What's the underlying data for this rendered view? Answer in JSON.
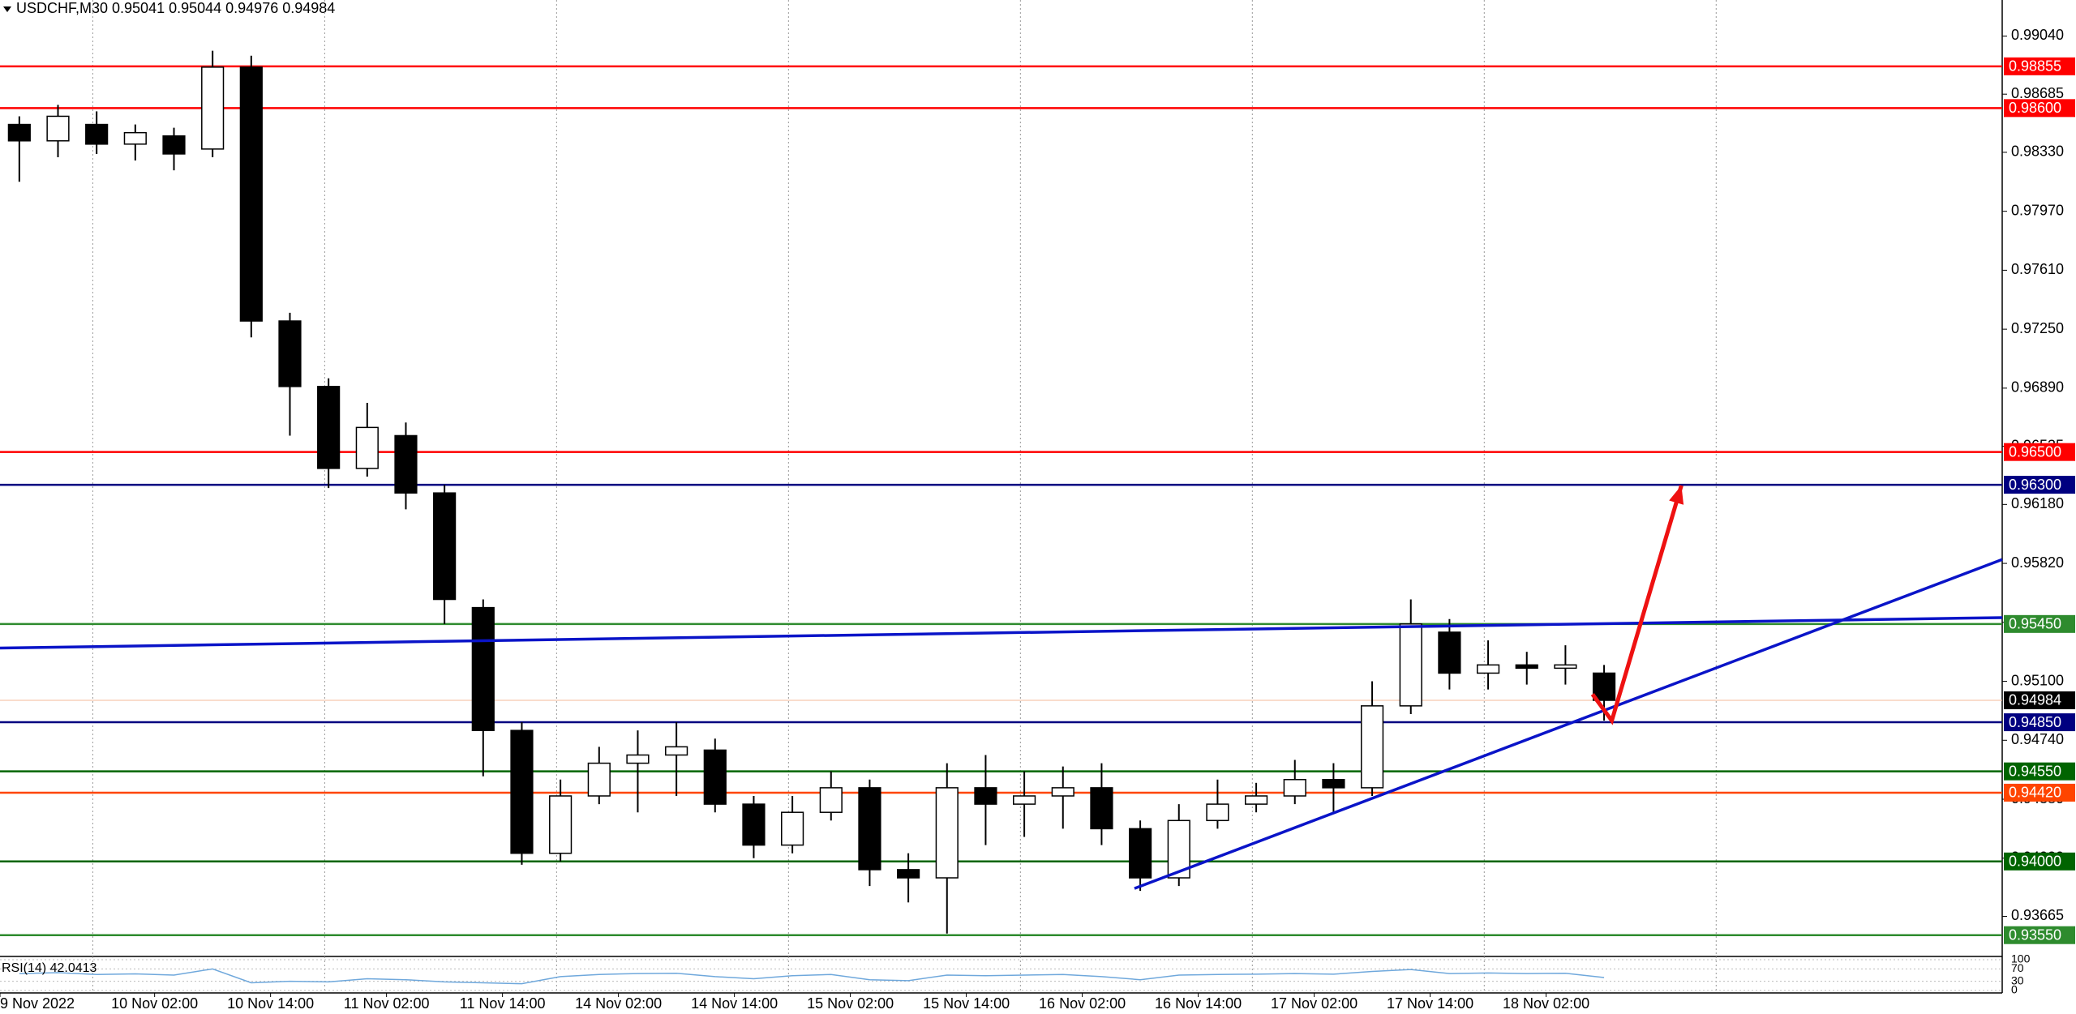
{
  "chart_data": {
    "type": "candlestick",
    "title": "USDCHF,M30  0.95041 0.95044 0.94976 0.94984",
    "open": [
      0.985,
      0.984,
      0.985,
      0.9838,
      0.9843,
      0.9835,
      0.9885,
      0.973,
      0.969,
      0.964,
      0.966,
      0.9625,
      0.9555,
      0.948,
      0.9405,
      0.944,
      0.946,
      0.9465,
      0.9468,
      0.9435,
      0.941,
      0.943,
      0.9445,
      0.9395,
      0.939,
      0.9445,
      0.9435,
      0.944,
      0.9445,
      0.942,
      0.939,
      0.9425,
      0.9435,
      0.944,
      0.945,
      0.9445,
      0.9495,
      0.954,
      0.9515,
      0.952,
      0.9518,
      0.9515
    ],
    "high": [
      0.9855,
      0.9862,
      0.9858,
      0.985,
      0.9848,
      0.9895,
      0.9892,
      0.9735,
      0.9695,
      0.968,
      0.9668,
      0.963,
      0.956,
      0.9485,
      0.945,
      0.947,
      0.948,
      0.9485,
      0.9475,
      0.944,
      0.944,
      0.9455,
      0.945,
      0.9405,
      0.946,
      0.9465,
      0.9455,
      0.9458,
      0.946,
      0.9425,
      0.9435,
      0.945,
      0.9448,
      0.9462,
      0.946,
      0.951,
      0.956,
      0.9548,
      0.9535,
      0.9528,
      0.9532,
      0.952
    ],
    "low": [
      0.9815,
      0.983,
      0.9832,
      0.9828,
      0.9822,
      0.983,
      0.972,
      0.966,
      0.9628,
      0.9635,
      0.9615,
      0.9545,
      0.9452,
      0.9398,
      0.94,
      0.9435,
      0.943,
      0.944,
      0.943,
      0.9402,
      0.9405,
      0.9425,
      0.9385,
      0.9375,
      0.9356,
      0.941,
      0.9415,
      0.942,
      0.941,
      0.9382,
      0.9385,
      0.942,
      0.943,
      0.9435,
      0.943,
      0.944,
      0.949,
      0.9505,
      0.9505,
      0.9508,
      0.9508,
      0.9486
    ],
    "close": [
      0.984,
      0.9855,
      0.9838,
      0.9845,
      0.9832,
      0.9885,
      0.973,
      0.969,
      0.964,
      0.9665,
      0.9625,
      0.956,
      0.948,
      0.9405,
      0.944,
      0.946,
      0.9465,
      0.947,
      0.9435,
      0.941,
      0.943,
      0.9445,
      0.9395,
      0.939,
      0.9445,
      0.9435,
      0.944,
      0.9445,
      0.942,
      0.939,
      0.9425,
      0.9435,
      0.944,
      0.945,
      0.9445,
      0.9495,
      0.9545,
      0.9515,
      0.952,
      0.9518,
      0.952,
      0.94984
    ],
    "xlim": [
      -0.5,
      51.3
    ],
    "xticks": [
      {
        "value": -0.5,
        "label": "9 Nov 2022"
      },
      {
        "value": 3.5,
        "label": "10 Nov 02:00"
      },
      {
        "value": 6.5,
        "label": "10 Nov 14:00"
      },
      {
        "value": 9.5,
        "label": "11 Nov 02:00"
      },
      {
        "value": 12.5,
        "label": "11 Nov 14:00"
      },
      {
        "value": 15.5,
        "label": "14 Nov 02:00"
      },
      {
        "value": 18.5,
        "label": "14 Nov 14:00"
      },
      {
        "value": 21.5,
        "label": "15 Nov 02:00"
      },
      {
        "value": 24.5,
        "label": "15 Nov 14:00"
      },
      {
        "value": 27.5,
        "label": "16 Nov 02:00"
      },
      {
        "value": 30.5,
        "label": "16 Nov 14:00"
      },
      {
        "value": 33.5,
        "label": "17 Nov 02:00"
      },
      {
        "value": 36.5,
        "label": "17 Nov 14:00"
      },
      {
        "value": 39.5,
        "label": "18 Nov 02:00"
      }
    ],
    "xgrid": [
      1.9,
      7.9,
      13.9,
      19.9,
      25.9,
      31.9,
      37.9,
      43.9
    ],
    "ylim": [
      0.9342,
      0.9926
    ],
    "yticks": [
      {
        "value": 0.9904,
        "label": "0.99040"
      },
      {
        "value": 0.98685,
        "label": "0.98685"
      },
      {
        "value": 0.9833,
        "label": "0.98330"
      },
      {
        "value": 0.9797,
        "label": "0.97970"
      },
      {
        "value": 0.9761,
        "label": "0.97610"
      },
      {
        "value": 0.9725,
        "label": "0.97250"
      },
      {
        "value": 0.9689,
        "label": "0.96890"
      },
      {
        "value": 0.96535,
        "label": "0.96535"
      },
      {
        "value": 0.9618,
        "label": "0.96180"
      },
      {
        "value": 0.9582,
        "label": "0.95820"
      },
      {
        "value": 0.9546,
        "label": "0.95460"
      },
      {
        "value": 0.951,
        "label": "0.95100"
      },
      {
        "value": 0.9474,
        "label": "0.94740"
      },
      {
        "value": 0.9438,
        "label": "0.94380"
      },
      {
        "value": 0.9402,
        "label": "0.94020"
      },
      {
        "value": 0.93665,
        "label": "0.93665"
      }
    ],
    "levels": [
      {
        "value": 0.98855,
        "label": "0.98855",
        "color": "#ff0000"
      },
      {
        "value": 0.986,
        "label": "0.98600",
        "color": "#ff0000"
      },
      {
        "value": 0.965,
        "label": "0.96500",
        "color": "#ff0000"
      },
      {
        "value": 0.963,
        "label": "0.96300",
        "color": "#000080"
      },
      {
        "value": 0.9545,
        "label": "0.95450",
        "color": "#2e8b2e"
      },
      {
        "value": 0.94984,
        "label": "0.94984",
        "color": "#f4b89a",
        "box": "#000000"
      },
      {
        "value": 0.9485,
        "label": "0.94850",
        "color": "#000080"
      },
      {
        "value": 0.9455,
        "label": "0.94550",
        "color": "#006400"
      },
      {
        "value": 0.9442,
        "label": "0.94420",
        "color": "#ff4500"
      },
      {
        "value": 0.94,
        "label": "0.94000",
        "color": "#006400"
      },
      {
        "value": 0.9355,
        "label": "0.93550",
        "color": "#2e8b2e"
      }
    ],
    "trendlines": [
      {
        "color": "#0a14c8",
        "x": [
          -0.5,
          51.3
        ],
        "y": [
          0.95303,
          0.95489
        ]
      },
      {
        "color": "#0a14c8",
        "x": [
          28.85,
          51.3
        ],
        "y": [
          0.93835,
          0.95844
        ]
      },
      {
        "color": "#ee1111",
        "x": [
          40.7,
          41.2,
          43.0
        ],
        "y": [
          0.95021,
          0.9486,
          0.96296
        ],
        "arrow": true
      }
    ],
    "indicator": {
      "label": "RSI(14) 42.0413",
      "color": "#6fa8dc",
      "ylim": [
        0,
        100
      ],
      "yticks": [
        0,
        30,
        70,
        100
      ],
      "values": [
        55,
        58,
        52,
        54,
        50,
        70,
        25,
        30,
        28,
        38,
        35,
        28,
        25,
        22,
        45,
        52,
        55,
        56,
        45,
        38,
        48,
        52,
        35,
        32,
        50,
        48,
        50,
        52,
        45,
        35,
        50,
        52,
        53,
        55,
        53,
        62,
        68,
        55,
        57,
        55,
        56,
        42
      ]
    }
  }
}
